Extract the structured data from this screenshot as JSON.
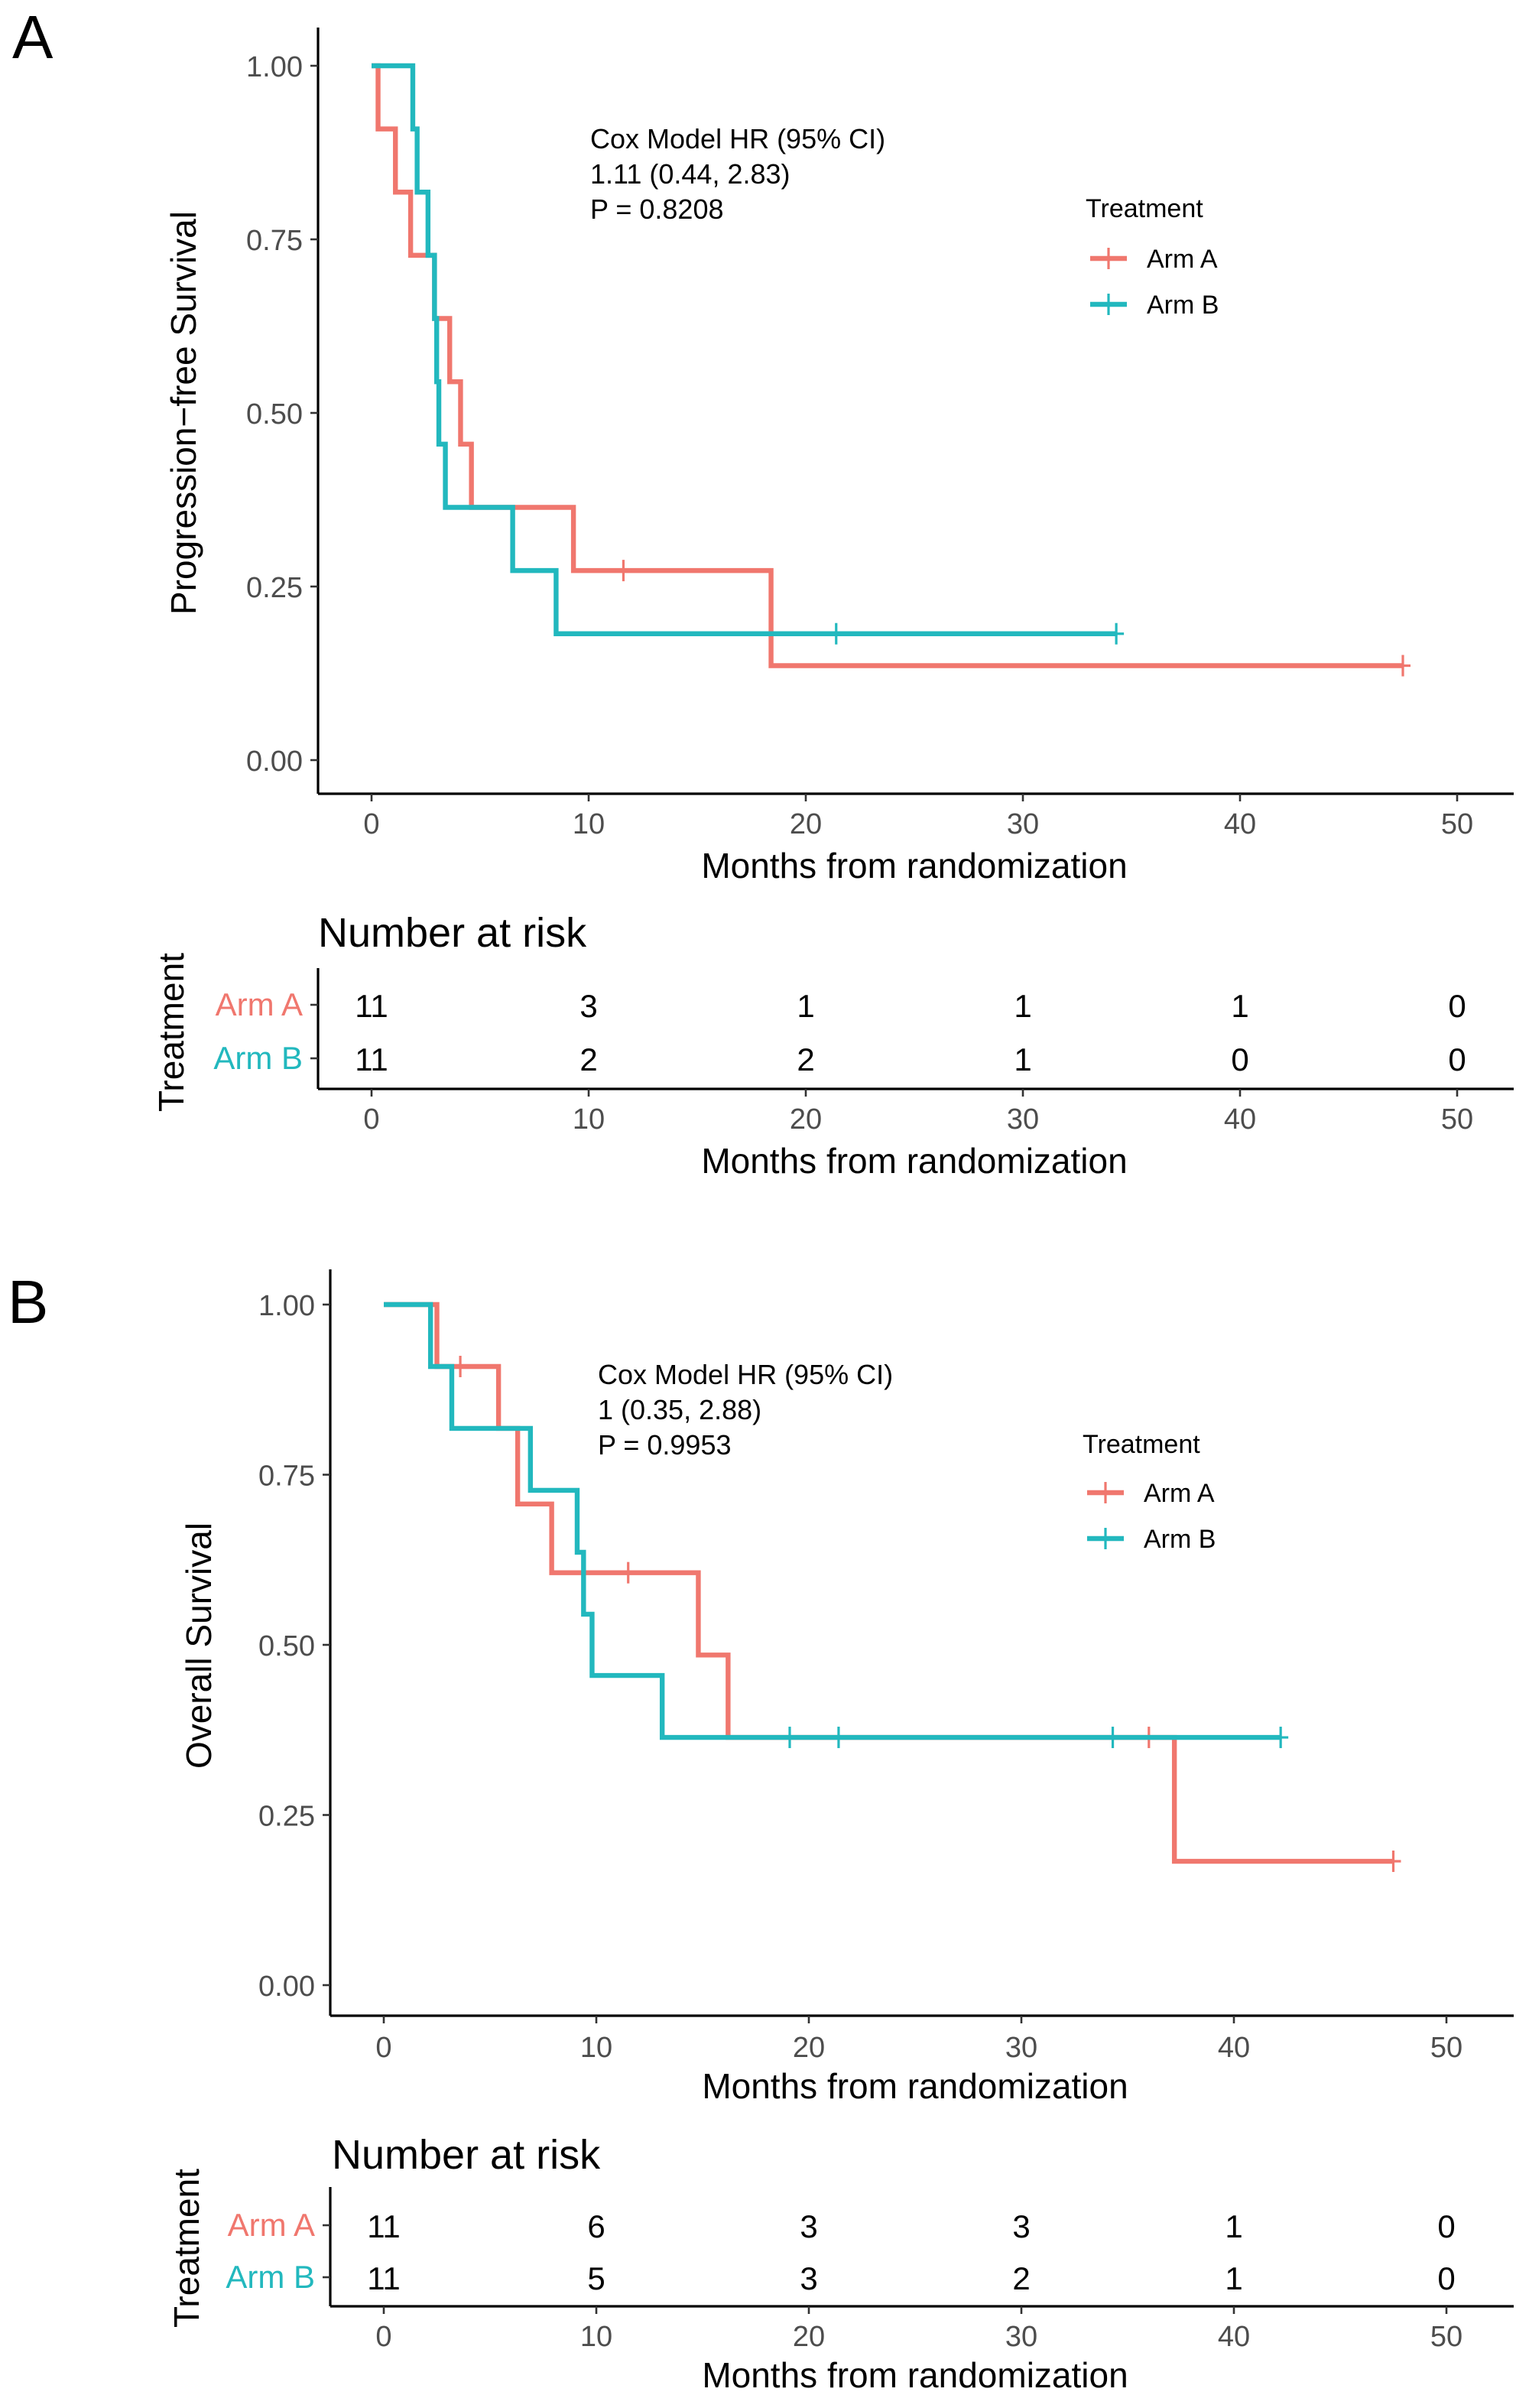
{
  "colors": {
    "arm_a": "#F0776E",
    "arm_b": "#22B8BE",
    "axis": "#000000"
  },
  "panels": [
    {
      "label": "A",
      "risk_title": "Number at risk",
      "risk_ylabel": "Treatment"
    },
    {
      "label": "B",
      "risk_title": "Number at risk",
      "risk_ylabel": "Treatment"
    }
  ],
  "chart_data": [
    {
      "type": "line",
      "subtype": "kaplan-meier step",
      "xlabel": "Months from randomization",
      "ylabel": "Progression−free Survival",
      "xlim": [
        0,
        50
      ],
      "ylim": [
        0,
        1
      ],
      "xticks": [
        "0",
        "10",
        "20",
        "30",
        "40",
        "50"
      ],
      "yticks": [
        "0.00",
        "0.25",
        "0.50",
        "0.75",
        "1.00"
      ],
      "grid": false,
      "annotation": [
        "Cox Model HR (95% CI)",
        "1.11 (0.44, 2.83)",
        "P = 0.8208"
      ],
      "legend": {
        "title": "Treatment",
        "placement": "top-right"
      },
      "series": [
        {
          "name": "Arm A",
          "steps": [
            [
              0,
              1.0
            ],
            [
              0.3,
              0.909
            ],
            [
              1.1,
              0.818
            ],
            [
              1.8,
              0.727
            ],
            [
              2.9,
              0.636
            ],
            [
              3.6,
              0.545
            ],
            [
              4.1,
              0.455
            ],
            [
              4.6,
              0.364
            ],
            [
              9.3,
              0.273
            ],
            [
              18.4,
              0.136
            ]
          ],
          "end": 47.5,
          "censored": [
            [
              11.6,
              0.273
            ],
            [
              47.5,
              0.136
            ]
          ]
        },
        {
          "name": "Arm B",
          "steps": [
            [
              0,
              1.0
            ],
            [
              1.9,
              0.909
            ],
            [
              2.1,
              0.818
            ],
            [
              2.6,
              0.727
            ],
            [
              2.9,
              0.636
            ],
            [
              3.0,
              0.545
            ],
            [
              3.1,
              0.455
            ],
            [
              3.4,
              0.364
            ],
            [
              6.5,
              0.273
            ],
            [
              8.5,
              0.182
            ]
          ],
          "end": 34.3,
          "censored": [
            [
              21.4,
              0.182
            ],
            [
              34.3,
              0.182
            ]
          ]
        }
      ],
      "risk_table": {
        "xlabel": "Months from randomization",
        "times": [
          "0",
          "10",
          "20",
          "30",
          "40",
          "50"
        ],
        "rows": [
          {
            "name": "Arm A",
            "values": [
              "11",
              "3",
              "1",
              "1",
              "1",
              "0"
            ]
          },
          {
            "name": "Arm B",
            "values": [
              "11",
              "2",
              "2",
              "1",
              "0",
              "0"
            ]
          }
        ]
      }
    },
    {
      "type": "line",
      "subtype": "kaplan-meier step",
      "xlabel": "Months from randomization",
      "ylabel": "Overall Survival",
      "xlim": [
        0,
        50
      ],
      "ylim": [
        0,
        1
      ],
      "xticks": [
        "0",
        "10",
        "20",
        "30",
        "40",
        "50"
      ],
      "yticks": [
        "0.00",
        "0.25",
        "0.50",
        "0.75",
        "1.00"
      ],
      "grid": false,
      "annotation": [
        "Cox Model HR (95% CI)",
        "1 (0.35, 2.88)",
        "P = 0.9953"
      ],
      "legend": {
        "title": "Treatment",
        "placement": "top-right"
      },
      "series": [
        {
          "name": "Arm A",
          "steps": [
            [
              0,
              1.0
            ],
            [
              2.5,
              0.909
            ],
            [
              5.4,
              0.818
            ],
            [
              6.3,
              0.707
            ],
            [
              7.9,
              0.606
            ],
            [
              14.8,
              0.485
            ],
            [
              16.2,
              0.364
            ],
            [
              37.2,
              0.182
            ]
          ],
          "end": 47.5,
          "censored": [
            [
              3.6,
              0.909
            ],
            [
              11.5,
              0.606
            ],
            [
              36.0,
              0.364
            ],
            [
              47.5,
              0.182
            ]
          ]
        },
        {
          "name": "Arm B",
          "steps": [
            [
              0,
              1.0
            ],
            [
              2.2,
              0.909
            ],
            [
              3.2,
              0.818
            ],
            [
              6.9,
              0.727
            ],
            [
              9.1,
              0.636
            ],
            [
              9.4,
              0.545
            ],
            [
              9.8,
              0.455
            ],
            [
              13.1,
              0.364
            ]
          ],
          "end": 42.2,
          "censored": [
            [
              19.1,
              0.364
            ],
            [
              21.4,
              0.364
            ],
            [
              34.3,
              0.364
            ],
            [
              42.2,
              0.364
            ]
          ]
        }
      ],
      "risk_table": {
        "xlabel": "Months from randomization",
        "times": [
          "0",
          "10",
          "20",
          "30",
          "40",
          "50"
        ],
        "rows": [
          {
            "name": "Arm A",
            "values": [
              "11",
              "6",
              "3",
              "3",
              "1",
              "0"
            ]
          },
          {
            "name": "Arm B",
            "values": [
              "11",
              "5",
              "3",
              "2",
              "1",
              "0"
            ]
          }
        ]
      }
    }
  ]
}
